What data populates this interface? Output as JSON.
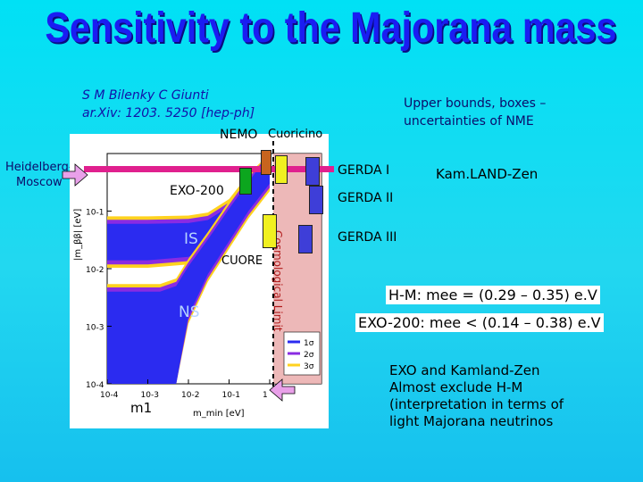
{
  "slide": {
    "title": "Sensitivity to the Majorana mass",
    "citation_authors": "S M Bilenky C Giunti",
    "citation_ref": "ar.Xiv: 1203. 5250 [hep-ph]",
    "upper_note_line1": "Upper bounds, boxes –",
    "upper_note_line2": "uncertainties of NME",
    "heidelberg_line1": "Heidelberg-",
    "heidelberg_line2": "Moscow",
    "label_nemo": "NEMO",
    "label_cuoricino": "Cuoricino",
    "label_exo200": "EXO-200",
    "label_cuore": "CUORE",
    "label_gerda1": "GERDA I",
    "label_gerda2": "GERDA II",
    "label_gerda3": "GERDA III",
    "label_kamland": "Kam.LAND-Zen",
    "hm_result": "H-M: mee = (0.29 – 0.35) e.V",
    "exo_result": "EXO-200: mee < (0.14 – 0.38) e.V",
    "conclusion_line1": "EXO and Kamland-Zen",
    "conclusion_line2": "Almost exclude H-M",
    "conclusion_line3": "(interpretation in terms  of",
    "conclusion_line4": "light Majorana neutrinos",
    "m1_label": "m1"
  },
  "colors": {
    "title": "#1a1df2",
    "band_blue": "#2b2bf0",
    "band_purple": "#8a2be2",
    "band_yellow": "#ffd21f",
    "cosmo_fill": "#e8a6a6",
    "hm_bar": "#e0208e",
    "arrow": "#e9a0e9",
    "nemo_box": "#c8641e",
    "cuoricino_box": "#f0f020",
    "exo_box": "#0ca61e",
    "cuore_box": "#f0f020",
    "gerda_box": "#3e3ed8"
  },
  "chart_data": {
    "type": "area",
    "title": "",
    "xlabel": "m_min  [eV]",
    "ylabel": "|m_ββ|  [eV]",
    "xscale": "log",
    "yscale": "log",
    "xlim": [
      0.0001,
      1
    ],
    "ylim": [
      0.0001,
      1
    ],
    "x_ticks": [
      "10-4",
      "10-3",
      "10-2",
      "10-1",
      "1"
    ],
    "y_ticks": [
      "10-4",
      "10-3",
      "10-2",
      "10-1"
    ],
    "series": [
      {
        "name": "IS",
        "x": [
          0.0001,
          0.001,
          0.01,
          0.03,
          0.1,
          0.3,
          1
        ],
        "lower": [
          0.014,
          0.014,
          0.016,
          0.022,
          0.05,
          0.14,
          0.45
        ],
        "upper": [
          0.06,
          0.06,
          0.062,
          0.07,
          0.12,
          0.32,
          1
        ]
      },
      {
        "name": "NS",
        "x": [
          0.0001,
          0.001,
          0.002,
          0.005,
          0.01,
          0.03,
          0.1,
          0.3,
          1
        ],
        "lower": [
          0.0001,
          0.0001,
          0.0001,
          0.0001,
          0.0015,
          0.008,
          0.03,
          0.1,
          0.3
        ],
        "upper": [
          0.004,
          0.004,
          0.004,
          0.005,
          0.011,
          0.032,
          0.11,
          0.32,
          1
        ]
      }
    ],
    "band_labels": [
      "IS",
      "NS"
    ],
    "annotation": "Cosmological Limit",
    "legend": {
      "placement": "bottom-right",
      "entries": [
        "1σ",
        "2σ",
        "3σ"
      ]
    },
    "grid": false
  }
}
